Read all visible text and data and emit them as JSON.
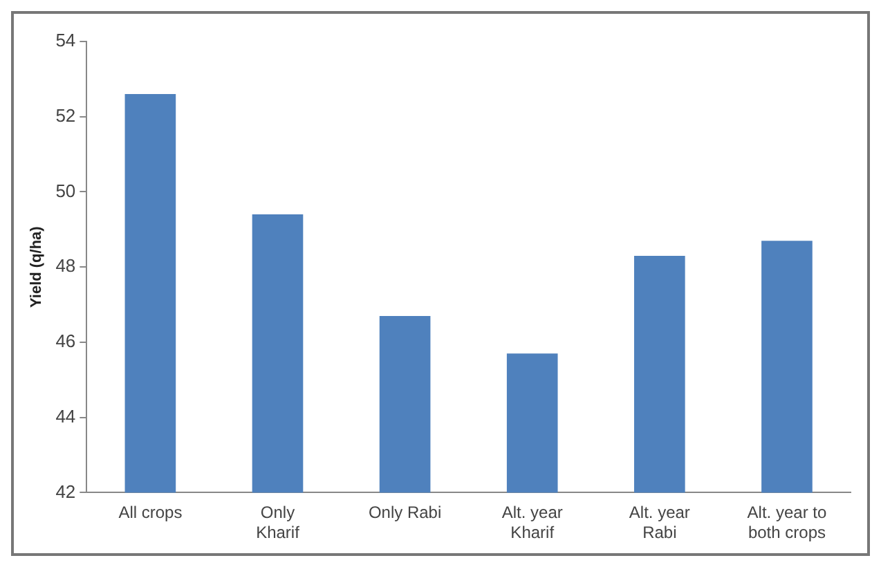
{
  "chart_data": {
    "type": "bar",
    "ylabel": "Yield (q/ha)",
    "categories": [
      "All crops",
      "Only\nKharif",
      "Only Rabi",
      "Alt. year\nKharif",
      "Alt. year\nRabi",
      "Alt. year to\nboth crops"
    ],
    "values": [
      52.6,
      49.4,
      46.7,
      45.7,
      48.3,
      48.7
    ],
    "color": "#4f81bd",
    "ylim": [
      42,
      54
    ],
    "yticks": [
      42,
      44,
      46,
      48,
      50,
      52,
      54
    ],
    "grid": false,
    "legend": false
  }
}
